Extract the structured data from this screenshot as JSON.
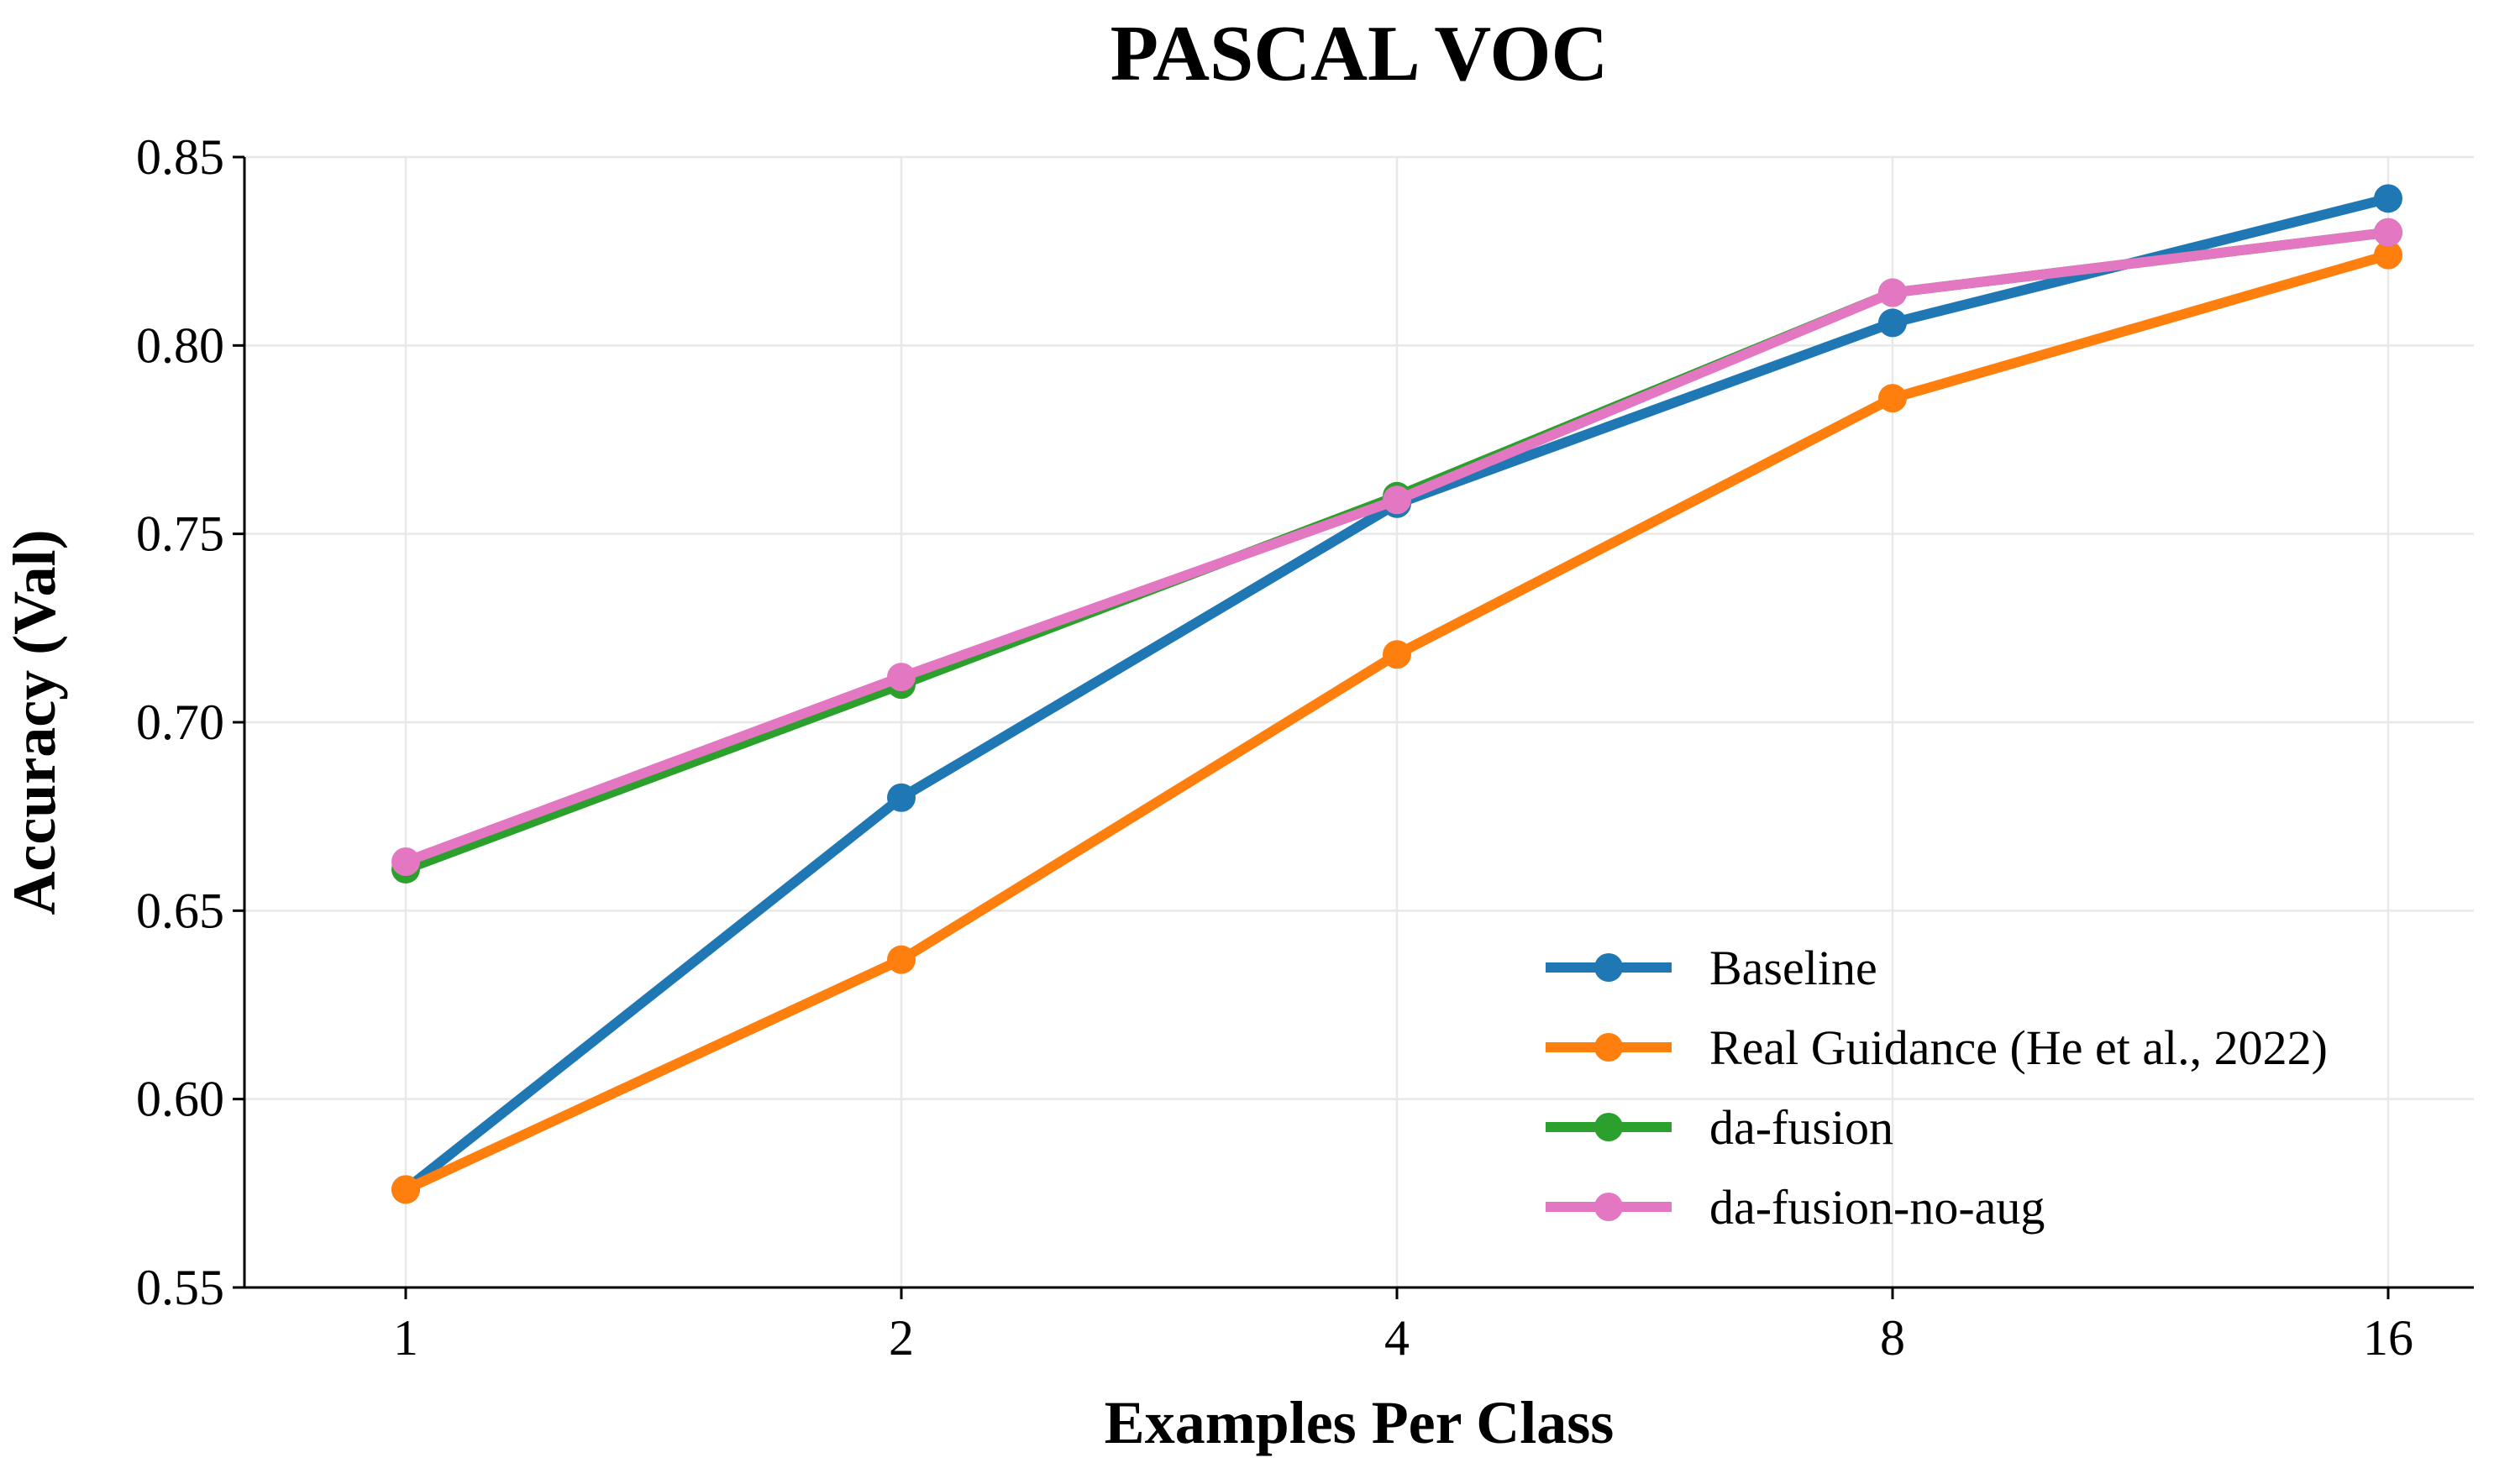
{
  "chart_data": {
    "type": "line",
    "title": "PASCAL VOC",
    "xlabel": "Examples Per Class",
    "ylabel": "Accuracy (Val)",
    "x": [
      1,
      2,
      4,
      8,
      16
    ],
    "x_tick_labels": [
      "1",
      "2",
      "4",
      "8",
      "16"
    ],
    "x_scale": "log2",
    "ylim": [
      0.55,
      0.85
    ],
    "y_ticks": [
      0.55,
      0.6,
      0.65,
      0.7,
      0.75,
      0.8,
      0.85
    ],
    "y_tick_labels": [
      "0.55",
      "0.60",
      "0.65",
      "0.70",
      "0.75",
      "0.80",
      "0.85"
    ],
    "grid": true,
    "legend_position": "lower-right",
    "series": [
      {
        "name": "Baseline",
        "color": "#1f77b4",
        "values": [
          0.576,
          0.68,
          0.758,
          0.806,
          0.839
        ]
      },
      {
        "name": "Real Guidance (He et al., 2022)",
        "color": "#ff7f0e",
        "values": [
          0.576,
          0.637,
          0.718,
          0.786,
          0.824
        ]
      },
      {
        "name": "da-fusion",
        "color": "#2ca02c",
        "values": [
          0.661,
          0.71,
          0.76,
          0.814,
          0.83
        ]
      },
      {
        "name": "da-fusion-no-aug",
        "color": "#e377c2",
        "values": [
          0.663,
          0.712,
          0.759,
          0.814,
          0.83
        ]
      }
    ]
  }
}
